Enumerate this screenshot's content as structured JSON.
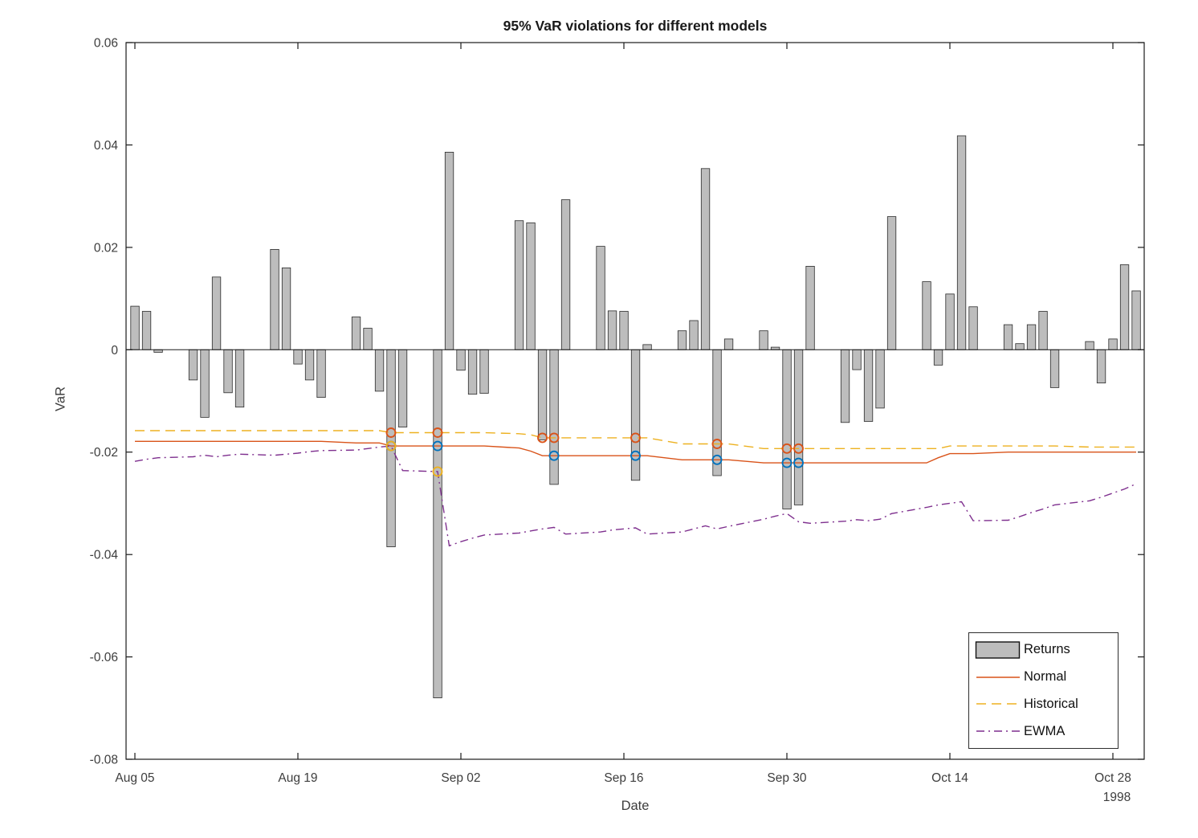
{
  "chart_data": {
    "type": "bar+line",
    "title": "95% VaR violations for different models",
    "xlabel": "Date",
    "ylabel": "VaR",
    "axis_year_label": "1998",
    "ylim": [
      -0.08,
      0.06
    ],
    "grid": false,
    "ytick_labels": [
      "0.06",
      "0.04",
      "0.02",
      "0",
      "-0.02",
      "-0.04",
      "-0.06",
      "-0.08"
    ],
    "ytick_values": [
      0.06,
      0.04,
      0.02,
      0,
      -0.02,
      -0.04,
      -0.06,
      -0.08
    ],
    "xtick_labels": [
      "Aug 05",
      "Aug 19",
      "Sep 02",
      "Sep 16",
      "Sep 30",
      "Oct 14",
      "Oct 28"
    ],
    "xtick_dates": [
      "1998-08-05",
      "1998-08-19",
      "1998-09-02",
      "1998-09-16",
      "1998-09-30",
      "1998-10-14",
      "1998-10-28"
    ],
    "dates": [
      "1998-08-05",
      "1998-08-06",
      "1998-08-07",
      "1998-08-10",
      "1998-08-11",
      "1998-08-12",
      "1998-08-13",
      "1998-08-14",
      "1998-08-17",
      "1998-08-18",
      "1998-08-19",
      "1998-08-20",
      "1998-08-21",
      "1998-08-24",
      "1998-08-25",
      "1998-08-26",
      "1998-08-27",
      "1998-08-28",
      "1998-08-31",
      "1998-09-01",
      "1998-09-02",
      "1998-09-03",
      "1998-09-04",
      "1998-09-07",
      "1998-09-08",
      "1998-09-09",
      "1998-09-10",
      "1998-09-11",
      "1998-09-14",
      "1998-09-15",
      "1998-09-16",
      "1998-09-17",
      "1998-09-18",
      "1998-09-21",
      "1998-09-22",
      "1998-09-23",
      "1998-09-24",
      "1998-09-25",
      "1998-09-28",
      "1998-09-29",
      "1998-09-30",
      "1998-10-01",
      "1998-10-02",
      "1998-10-05",
      "1998-10-06",
      "1998-10-07",
      "1998-10-08",
      "1998-10-09",
      "1998-10-12",
      "1998-10-13",
      "1998-10-14",
      "1998-10-15",
      "1998-10-16",
      "1998-10-19",
      "1998-10-20",
      "1998-10-21",
      "1998-10-22",
      "1998-10-23",
      "1998-10-26",
      "1998-10-27",
      "1998-10-28",
      "1998-10-29",
      "1998-10-30"
    ],
    "returns": [
      0.0085,
      0.0075,
      -0.0005,
      -0.0059,
      -0.0132,
      0.0142,
      -0.0084,
      -0.0112,
      0.0196,
      0.016,
      -0.0028,
      -0.0059,
      -0.0093,
      0.0064,
      0.0042,
      -0.0081,
      -0.0385,
      -0.0151,
      -0.068,
      0.0386,
      -0.004,
      -0.0087,
      -0.0085,
      0.0252,
      0.0248,
      -0.0176,
      -0.0263,
      0.0293,
      0.0202,
      0.0076,
      0.0075,
      -0.0255,
      0.001,
      0.0037,
      0.0057,
      0.0354,
      -0.0246,
      0.0021,
      0.0037,
      0.0005,
      -0.0311,
      -0.0303,
      0.0163,
      -0.0142,
      -0.0039,
      -0.014,
      -0.0114,
      0.026,
      0.0133,
      -0.003,
      0.0109,
      0.0418,
      0.0084,
      0.0049,
      0.0012,
      0.0049,
      0.0075,
      -0.0074,
      0.0016,
      -0.0065,
      0.0021,
      0.0166,
      0.0115
    ],
    "series": [
      {
        "name": "Normal",
        "style": "solid",
        "color": "#D95319",
        "values": [
          -0.0179,
          -0.0179,
          -0.0179,
          -0.0179,
          -0.0179,
          -0.0179,
          -0.0179,
          -0.0179,
          -0.0179,
          -0.0179,
          -0.0179,
          -0.0179,
          -0.0179,
          -0.0182,
          -0.0182,
          -0.0182,
          -0.0188,
          -0.0188,
          -0.0188,
          -0.0188,
          -0.0188,
          -0.0188,
          -0.0188,
          -0.0192,
          -0.0198,
          -0.0207,
          -0.0207,
          -0.0207,
          -0.0207,
          -0.0207,
          -0.0207,
          -0.0207,
          -0.0207,
          -0.0215,
          -0.0215,
          -0.0215,
          -0.0215,
          -0.0215,
          -0.0221,
          -0.0221,
          -0.0221,
          -0.0221,
          -0.0221,
          -0.0221,
          -0.0221,
          -0.0221,
          -0.0221,
          -0.0221,
          -0.0221,
          -0.0211,
          -0.0203,
          -0.0203,
          -0.0203,
          -0.02,
          -0.02,
          -0.02,
          -0.02,
          -0.02,
          -0.02,
          -0.02,
          -0.02,
          -0.02,
          -0.02
        ]
      },
      {
        "name": "Historical",
        "style": "dashed",
        "color": "#EDB120",
        "values": [
          -0.0158,
          -0.0158,
          -0.0158,
          -0.0158,
          -0.0158,
          -0.0158,
          -0.0158,
          -0.0158,
          -0.0158,
          -0.0158,
          -0.0158,
          -0.0158,
          -0.0158,
          -0.0158,
          -0.0158,
          -0.0158,
          -0.0162,
          -0.0162,
          -0.0162,
          -0.0162,
          -0.0162,
          -0.0162,
          -0.0162,
          -0.0164,
          -0.0166,
          -0.0172,
          -0.0172,
          -0.0172,
          -0.0172,
          -0.0172,
          -0.0172,
          -0.0172,
          -0.0172,
          -0.0184,
          -0.0184,
          -0.0184,
          -0.0184,
          -0.0184,
          -0.0193,
          -0.0193,
          -0.0193,
          -0.0193,
          -0.0193,
          -0.0193,
          -0.0193,
          -0.0193,
          -0.0193,
          -0.0193,
          -0.0193,
          -0.0193,
          -0.0188,
          -0.0188,
          -0.0188,
          -0.0188,
          -0.0188,
          -0.0188,
          -0.0188,
          -0.0188,
          -0.019,
          -0.019,
          -0.019,
          -0.019,
          -0.019
        ]
      },
      {
        "name": "EWMA",
        "style": "dashdot",
        "color": "#7E2F8E",
        "values": [
          -0.0218,
          -0.0214,
          -0.0211,
          -0.0209,
          -0.0206,
          -0.0209,
          -0.0206,
          -0.0204,
          -0.0206,
          -0.0204,
          -0.0202,
          -0.0199,
          -0.0197,
          -0.0196,
          -0.0193,
          -0.019,
          -0.0188,
          -0.0236,
          -0.0238,
          -0.0383,
          -0.0375,
          -0.0368,
          -0.0362,
          -0.0358,
          -0.0354,
          -0.035,
          -0.0347,
          -0.036,
          -0.0356,
          -0.0352,
          -0.035,
          -0.0348,
          -0.036,
          -0.0356,
          -0.035,
          -0.0344,
          -0.035,
          -0.0345,
          -0.0331,
          -0.0325,
          -0.032,
          -0.0336,
          -0.0339,
          -0.0335,
          -0.0332,
          -0.0334,
          -0.0331,
          -0.032,
          -0.0308,
          -0.0303,
          -0.03,
          -0.0297,
          -0.0334,
          -0.0333,
          -0.0326,
          -0.0318,
          -0.0311,
          -0.0303,
          -0.0295,
          -0.0288,
          -0.028,
          -0.0272,
          -0.0262
        ]
      }
    ],
    "violations": [
      {
        "model": "Normal",
        "marker": "circle",
        "marker_color": "#0072BD",
        "dates": [
          "1998-08-27",
          "1998-08-31",
          "1998-09-10",
          "1998-09-17",
          "1998-09-24",
          "1998-09-30",
          "1998-10-01"
        ]
      },
      {
        "model": "Historical",
        "marker": "circle",
        "marker_color": "#D95319",
        "dates": [
          "1998-08-27",
          "1998-08-31",
          "1998-09-09",
          "1998-09-10",
          "1998-09-17",
          "1998-09-24",
          "1998-09-30",
          "1998-10-01"
        ]
      },
      {
        "model": "EWMA",
        "marker": "circle",
        "marker_color": "#EDB120",
        "dates": [
          "1998-08-27",
          "1998-08-31"
        ]
      }
    ],
    "colors": {
      "bar_fill": "#bdbdbd",
      "bar_edge": "#2b2b2b",
      "axis": "#1a1a1a",
      "tick_text": "#3d3d3d"
    },
    "legend": {
      "position": "southeast",
      "entries": [
        {
          "label": "Returns",
          "type": "patch",
          "color": "#bdbdbd"
        },
        {
          "label": "Normal",
          "type": "solid",
          "color": "#D95319"
        },
        {
          "label": "Historical",
          "type": "dashed",
          "color": "#EDB120"
        },
        {
          "label": "EWMA",
          "type": "dashdot",
          "color": "#7E2F8E"
        }
      ]
    }
  }
}
